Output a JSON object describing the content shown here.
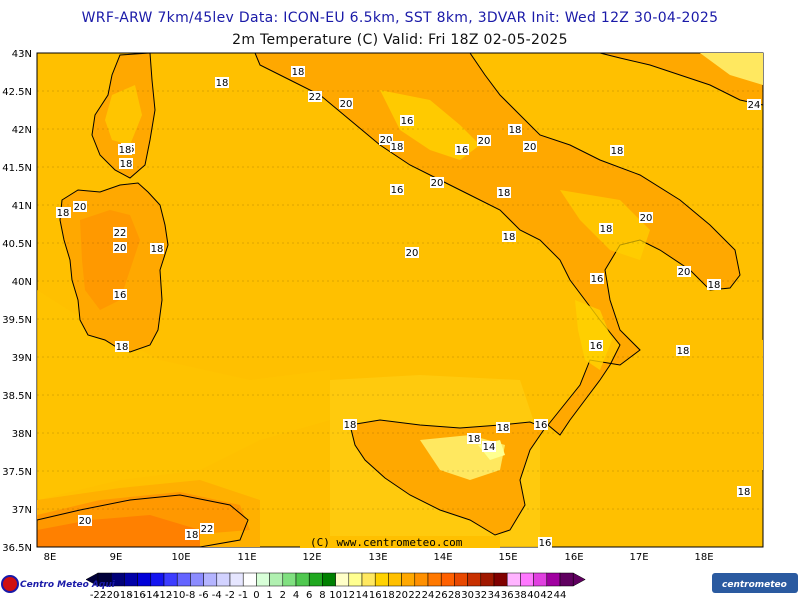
{
  "header": {
    "line1": "WRF-ARW 7km/45lev   Data: ICON-EU 6.5km, SST 8km, 3DVAR   Init: Wed 12Z 30-04-2025",
    "line2": "2m Temperature (C)   Valid: Fri 18Z 02-05-2025"
  },
  "map": {
    "lat_labels": [
      "43N",
      "42.5N",
      "42N",
      "41.5N",
      "41N",
      "40.5N",
      "40N",
      "39.5N",
      "39N",
      "38.5N",
      "38N",
      "37.5N",
      "37N",
      "36.5N"
    ],
    "lon_labels": [
      "8E",
      "9E",
      "10E",
      "11E",
      "12E",
      "13E",
      "14E",
      "15E",
      "16E",
      "17E",
      "18E"
    ],
    "credit": "(C) www.centrometeo.com",
    "contour_labels": [
      "18",
      "20",
      "22",
      "18",
      "20",
      "16",
      "18",
      "20",
      "18",
      "16",
      "20",
      "18",
      "20",
      "16",
      "18",
      "20",
      "18",
      "20",
      "18",
      "16",
      "20",
      "18",
      "22",
      "20",
      "18",
      "16",
      "18",
      "18",
      "20",
      "20",
      "16",
      "18",
      "16",
      "18",
      "18",
      "16",
      "18",
      "14",
      "18",
      "16",
      "18",
      "22",
      "20",
      "24",
      "18",
      "18"
    ]
  },
  "colorbar": {
    "labels": [
      "-22",
      "-20",
      "-18",
      "-16",
      "-14",
      "-12",
      "-10",
      "-8",
      "-6",
      "-4",
      "-2",
      "-1",
      "0",
      "1",
      "2",
      "4",
      "6",
      "8",
      "10",
      "12",
      "14",
      "16",
      "18",
      "20",
      "22",
      "24",
      "26",
      "28",
      "30",
      "32",
      "34",
      "36",
      "38",
      "40",
      "42",
      "44"
    ],
    "colors": [
      "#00003a",
      "#000078",
      "#0000a8",
      "#0000d8",
      "#1414f0",
      "#3c3cff",
      "#6464ff",
      "#8c8cff",
      "#b4b4ff",
      "#d2d2ff",
      "#e6e6ff",
      "#ffffff",
      "#d8ffd8",
      "#b0f0b0",
      "#80e080",
      "#50c850",
      "#20a820",
      "#008000",
      "#ffffc8",
      "#ffff90",
      "#ffe860",
      "#ffd200",
      "#ffc000",
      "#ffa800",
      "#ff9000",
      "#ff7800",
      "#ff6000",
      "#e84800",
      "#c83000",
      "#a01800",
      "#800000",
      "#ffb4ff",
      "#ff78ff",
      "#e040e0",
      "#a000a0",
      "#600060"
    ],
    "left_logo": "Centro Meteo Aqui",
    "right_logo": "centrometeo"
  }
}
